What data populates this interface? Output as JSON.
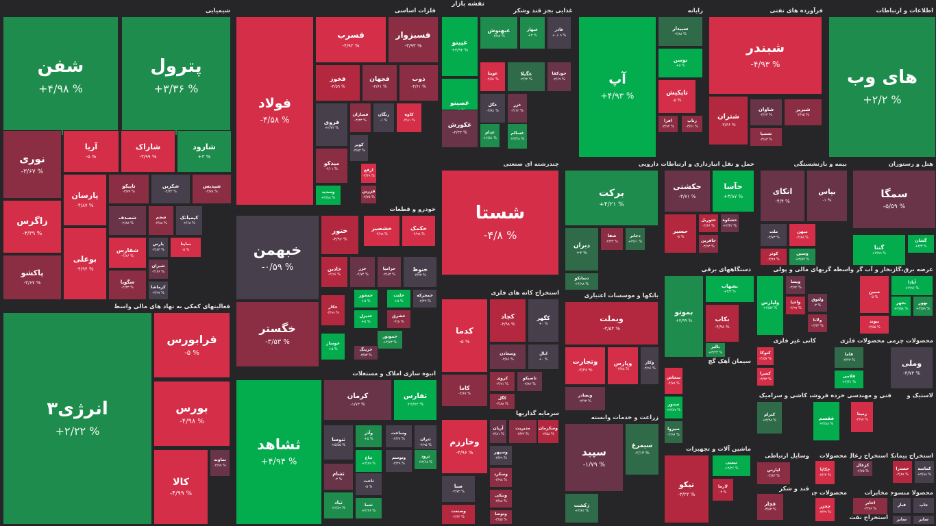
{
  "title": "نقشه بازار",
  "colors": {
    "g3": "#03ad4e",
    "g2": "#1d8c4c",
    "g1": "#2f6b48",
    "n": "#47404c",
    "r1": "#6a3448",
    "r2": "#8b2e43",
    "r3": "#b4283f",
    "r4": "#d42e48",
    "bg": "#262628"
  },
  "sectors": [
    {
      "name": "شیمیایی",
      "tiles": [
        {
          "s": "شفن",
          "c": "+۴/۹۸ %",
          "k": "g2"
        },
        {
          "s": "پترول",
          "c": "+۳/۳۶ %",
          "k": "g2"
        },
        {
          "s": "نوری",
          "c": "-۳/۶۷ %",
          "k": "r2"
        },
        {
          "s": "آریا",
          "c": "-۵ %",
          "k": "r4"
        },
        {
          "s": "شاراک",
          "c": "-۳/۹۹ %",
          "k": "r4"
        },
        {
          "s": "شارود",
          "c": "+۳ %",
          "k": "g2"
        },
        {
          "s": "زاگرس",
          "c": "-۴/۳۹ %",
          "k": "r4"
        },
        {
          "s": "پارسان",
          "c": "-۴/۸۷ %",
          "k": "r4"
        },
        {
          "s": "تاپیکو",
          "c": "-۳/۷۷ %",
          "k": "r2"
        },
        {
          "s": "شکربن",
          "c": "-۳/۴۴ %",
          "k": "n"
        },
        {
          "s": "شپدیس",
          "c": "-۳/۷۸ %",
          "k": "r2"
        },
        {
          "s": "پاکشو",
          "c": "-۳/۶۷ %",
          "k": "r2"
        },
        {
          "s": "شصدف",
          "c": "-۲/۸۸ %",
          "k": "r1"
        },
        {
          "s": "شجم",
          "c": "-۴/۸۸ %",
          "k": "r2"
        },
        {
          "s": "کیمیاتک",
          "c": "-۲/۶۸ %",
          "k": "n"
        },
        {
          "s": "شفارس",
          "c": "-۴/۸۶ %",
          "k": "r4"
        },
        {
          "s": "شگویا",
          "c": "-۴/۳۳ %",
          "k": "r2"
        },
        {
          "s": "پارس",
          "c": "-۳/۸۳ %",
          "k": "n"
        },
        {
          "s": "ساینا",
          "c": "-۵ %",
          "k": "r4"
        },
        {
          "s": "بوعلی",
          "c": "-۴/۹۴ %",
          "k": "r4"
        },
        {
          "s": "شیران",
          "c": "-۳/۶۶ %",
          "k": "r1"
        },
        {
          "s": "فارس",
          "c": "-۳/۹۵ %",
          "k": "r2"
        },
        {
          "s": "کرماشا",
          "c": "-۳/۲۷ %",
          "k": "n"
        }
      ]
    },
    {
      "name": "فلزات اساسی",
      "tiles": [
        {
          "s": "فولاد",
          "c": "-۴/۵۸ %",
          "k": "r4"
        },
        {
          "s": "فسرب",
          "c": "-۴/۹۲ %",
          "k": "r4"
        },
        {
          "s": "فسبزوار",
          "c": "-۳/۹۳ %",
          "k": "r2"
        },
        {
          "s": "فخوز",
          "c": "-۴/۵۹ %",
          "k": "r3"
        },
        {
          "s": "فجهان",
          "c": "-۳/۶۱ %",
          "k": "r2"
        },
        {
          "s": "ذوب",
          "c": "-۴/۶۱ %",
          "k": "r2"
        },
        {
          "s": "فروی",
          "c": "+۲/۷۲ %",
          "k": "n"
        },
        {
          "s": "فسازان",
          "c": "-۳/۳۳ %",
          "k": "r2"
        },
        {
          "s": "زنگان",
          "c": "-۱ %",
          "k": "n"
        },
        {
          "s": "کاوه",
          "c": "-۴/۸۱ %",
          "k": "r4"
        },
        {
          "s": "کویر",
          "c": "-۳/۵۳ %",
          "k": "n"
        },
        {
          "s": "میدکو",
          "c": "-۴/۰۱ %",
          "k": "r2"
        },
        {
          "s": "ارفع",
          "c": "-۳/۴۹ %",
          "k": "r4"
        },
        {
          "s": "فزرین",
          "c": "-۳/۷۵ %",
          "k": "r2"
        },
        {
          "s": "وسدید",
          "c": "+۳/۸۸ %",
          "k": "g3"
        }
      ]
    },
    {
      "name": "غذایی بجز قند وشکر",
      "tiles": [
        {
          "s": "غپینو",
          "c": "+۳/۹۲ %",
          "k": "g3"
        },
        {
          "s": "غبهنوش",
          "c": "-۳/۸۷ %",
          "k": "g2"
        },
        {
          "s": "غبهار",
          "c": "+۳ %",
          "k": "g2"
        },
        {
          "s": "غاذر",
          "c": "+۰/۰۹ %",
          "k": "n"
        },
        {
          "s": "غصینو",
          "c": "+۵ %",
          "k": "g3"
        },
        {
          "s": "غویتا",
          "c": "-۴/۵۱ %",
          "k": "r4"
        },
        {
          "s": "غگیلا",
          "c": "-۲/۴۲ %",
          "k": "g1"
        },
        {
          "s": "خودکفا",
          "c": "-۲/۶۹ %",
          "k": "r1"
        },
        {
          "s": "غگل",
          "c": "-۳/۸۱ %",
          "k": "n"
        },
        {
          "s": "غزر",
          "c": "-۳/۱۲ %",
          "k": "r1"
        },
        {
          "s": "غکورش",
          "c": "-۳/۳۳ %",
          "k": "r1"
        },
        {
          "s": "غدام",
          "c": "+۲/۵۱ %",
          "k": "g2"
        },
        {
          "s": "غسالم",
          "c": "+۳/۴۸ %",
          "k": "g2"
        }
      ]
    },
    {
      "name": "رایانه",
      "tiles": [
        {
          "s": "آپ",
          "c": "+۴/۹۳ %",
          "k": "g3"
        },
        {
          "s": "سپیدار",
          "c": "-۳/۸۸ %",
          "k": "g1"
        },
        {
          "s": "توسن",
          "c": "+۵ %",
          "k": "g3"
        },
        {
          "s": "تاپکیش",
          "c": "-۵ %",
          "k": "r4"
        },
        {
          "s": "افرا",
          "c": "-۳/۹۲ %",
          "k": "r2"
        },
        {
          "s": "رتاپ",
          "c": "-۳/۷۱ %",
          "k": "r2"
        }
      ]
    },
    {
      "name": "فرآورده های نفتی",
      "tiles": [
        {
          "s": "شبندر",
          "c": "-۴/۹۳ %",
          "k": "r4"
        },
        {
          "s": "شاوان",
          "c": "-۳/۶۳ %",
          "k": "r1"
        },
        {
          "s": "شبریز",
          "c": "-۳/۹۵ %",
          "k": "r2"
        },
        {
          "s": "شتران",
          "c": "-۳/۶۶ %",
          "k": "r3"
        },
        {
          "s": "شسپا",
          "c": "-۳/۸۳ %",
          "k": "r2"
        }
      ]
    },
    {
      "name": "اطلاعات و ارتباطات",
      "tiles": [
        {
          "s": "های وب",
          "c": "+۲/۲ %",
          "k": "g2"
        }
      ]
    },
    {
      "name": "خودرو و قطعات",
      "tiles": [
        {
          "s": "خبهمن",
          "c": "-۰/۵۹ %",
          "k": "n"
        },
        {
          "s": "ختور",
          "c": "-۴/۹۶ %",
          "k": "r3"
        },
        {
          "s": "خشصیر",
          "c": "-۴/۹۸ %",
          "k": "r4"
        },
        {
          "s": "خکمک",
          "c": "-۴/۹۸ %",
          "k": "r4"
        },
        {
          "s": "خگستر",
          "c": "-۳/۵۳ %",
          "k": "r2"
        },
        {
          "s": "خاذین",
          "c": "-۴/۹۶ %",
          "k": "r3"
        },
        {
          "s": "خزر",
          "c": "-۴/۷۴ %",
          "k": "r1"
        },
        {
          "s": "خزامیا",
          "c": "-۳/۸۳ %",
          "k": "r1"
        },
        {
          "s": "خنوظ",
          "c": "-۳/۳۳ %",
          "k": "n"
        },
        {
          "s": "خکار",
          "c": "-۴/۹۹ %",
          "k": "r3"
        },
        {
          "s": "خمحور",
          "c": "+۵ %",
          "k": "g3"
        },
        {
          "s": "خلنت",
          "c": "+۵ %",
          "k": "g3"
        },
        {
          "s": "خمحرکه",
          "c": "-۲/۴۲ %",
          "k": "n"
        },
        {
          "s": "خدیزل",
          "c": "+۵ %",
          "k": "g3"
        },
        {
          "s": "خشرق",
          "c": "-۴/۸ %",
          "k": "r2"
        },
        {
          "s": "خموتور",
          "c": "+۳/۷۳ %",
          "k": "g2"
        },
        {
          "s": "خوساز",
          "c": "+۵ %",
          "k": "g3"
        },
        {
          "s": "خرینگ",
          "c": "-۳/۵۳ %",
          "k": "r1"
        }
      ]
    },
    {
      "name": "فعالیتهای کمکی به نهاد های مالی واسط",
      "tiles": [
        {
          "s": "انرژی۳",
          "c": "+۲/۲۲ %",
          "k": "g2"
        },
        {
          "s": "فرابورس",
          "c": "-۵ %",
          "k": "r4"
        },
        {
          "s": "بورس",
          "c": "-۴/۹۸ %",
          "k": "r4"
        },
        {
          "s": "کالا",
          "c": "-۴/۹۹ %",
          "k": "r4"
        },
        {
          "s": "تماوند",
          "c": "-۲/۹۹ %",
          "k": "r1"
        }
      ]
    },
    {
      "name": "انبوه سازی املاک و مستغلات",
      "tiles": [
        {
          "s": "ثشاهد",
          "c": "+۴/۹۴ %",
          "k": "g3"
        },
        {
          "s": "کرمان",
          "c": "-۱/۷۳ %",
          "k": "r1"
        },
        {
          "s": "ثفارس",
          "c": "+۳/۷۳ %",
          "k": "g3"
        },
        {
          "s": "ثنوسا",
          "c": "+۵/۵۵ %",
          "k": "n"
        },
        {
          "s": "وآذر",
          "c": "+۵ %",
          "k": "g2"
        },
        {
          "s": "وساخت",
          "c": "-۲/۲۷ %",
          "k": "n"
        },
        {
          "s": "ثتران",
          "c": "-۳/۹۵ %",
          "k": "n"
        },
        {
          "s": "ثباغ",
          "c": "+۳/۸۹ %",
          "k": "g3"
        },
        {
          "s": "وتوسم",
          "c": "-۳/۲۹ %",
          "k": "n"
        },
        {
          "s": "ثرود",
          "c": "+۳/۶۸ %",
          "k": "g2"
        },
        {
          "s": "ثشام",
          "c": "-۳ %",
          "k": "r1"
        },
        {
          "s": "ثاخت",
          "c": "-۵ %",
          "k": "n"
        },
        {
          "s": "ثباد",
          "c": "+۲/۸۹ %",
          "k": "g2"
        },
        {
          "s": "ثعما",
          "c": "+۳/۶۶ %",
          "k": "g2"
        }
      ]
    },
    {
      "name": "چندرشته ای صنعتی",
      "tiles": [
        {
          "s": "شستا",
          "c": "-۴/۸ %",
          "k": "r4"
        }
      ]
    },
    {
      "name": "استخراج کانه های فلزی",
      "tiles": [
        {
          "s": "کدما",
          "c": "-۵ %",
          "k": "r4"
        },
        {
          "s": "کچاد",
          "c": "-۴/۹۸ %",
          "k": "r3"
        },
        {
          "s": "کگهر",
          "c": "+۰ %",
          "k": "n"
        },
        {
          "s": "وسعادن",
          "c": "-۳/۸۶ %",
          "k": "r1"
        },
        {
          "s": "ابال",
          "c": "+۰ %",
          "k": "n"
        },
        {
          "s": "کاما",
          "c": "-۳/۶۷ %",
          "k": "r2"
        },
        {
          "s": "کروی",
          "c": "-۴/۷۱ %",
          "k": "r2"
        },
        {
          "s": "تاصیکو",
          "c": "-۳/۸۲ %",
          "k": "r1"
        },
        {
          "s": "کگل",
          "c": "-۴/۸۸ %",
          "k": "r2"
        }
      ]
    },
    {
      "name": "سرمایه گذاریها",
      "tiles": [
        {
          "s": "وخارزم",
          "c": "-۴/۹۶ %",
          "k": "r4"
        },
        {
          "s": "آریان",
          "c": "-۳/۸۱ %",
          "k": "r1"
        },
        {
          "s": "مدیریت",
          "c": "-۳/۳۲ %",
          "k": "r2"
        },
        {
          "s": "وسکرمان",
          "c": "-۳/۵۸ %",
          "k": "r3"
        },
        {
          "s": "وسپهر",
          "c": "-۳/۷۹ %",
          "k": "n"
        },
        {
          "s": "وسکرد",
          "c": "-۳/۹۸ %",
          "k": "r2"
        },
        {
          "s": "صبا",
          "c": "-۳/۷۲ %",
          "k": "n"
        },
        {
          "s": "ونیکی",
          "c": "-۳/۸۸ %",
          "k": "r2"
        },
        {
          "s": "وتوصا",
          "c": "-۳/۵۵ %",
          "k": "r2"
        },
        {
          "s": "وصنعت",
          "c": "-۳/۴۴ %",
          "k": "r3"
        }
      ]
    },
    {
      "name": "دارویی",
      "tiles": [
        {
          "s": "برکت",
          "c": "+۴/۲۱ %",
          "k": "g2"
        },
        {
          "s": "دیران",
          "c": "+۳ %",
          "k": "g1"
        },
        {
          "s": "شفا",
          "c": "-۴/۳۴ %",
          "k": "r2"
        },
        {
          "s": "دجابر",
          "c": "+۳/۶۱ %",
          "k": "g1"
        },
        {
          "s": "دسانکو",
          "c": "+۴/۹۸ %",
          "k": "g1"
        }
      ]
    },
    {
      "name": "بانکها و موسسات اعتباری",
      "tiles": [
        {
          "s": "وبملت",
          "c": "-۳/۵۴ %",
          "k": "r3"
        },
        {
          "s": "وتجارت",
          "c": "-۳/۳۶ %",
          "k": "r4"
        },
        {
          "s": "وپارس",
          "c": "-۳/۸۸ %",
          "k": "r4"
        },
        {
          "s": "وکار",
          "c": "-۳/۹۶ %",
          "k": "n"
        },
        {
          "s": "وبصادر",
          "c": "-۳/۴۳ %",
          "k": "r1"
        }
      ]
    },
    {
      "name": "زراعت و خدمات وابسته",
      "tiles": [
        {
          "s": "سپید",
          "c": "-۱/۷۹ %",
          "k": "r1"
        },
        {
          "s": "سیمرغ",
          "c": "-۲/۱۳ %",
          "k": "g1"
        },
        {
          "s": "زکشت",
          "c": "+۳/۸۲ %",
          "k": "g1"
        }
      ]
    },
    {
      "name": "حمل و نقل انبارداری و ارتباطات",
      "tiles": [
        {
          "s": "حکشتی",
          "c": "-۳/۷۱ %",
          "k": "r1"
        },
        {
          "s": "حآسا",
          "c": "+۳/۸۷ %",
          "k": "g3"
        },
        {
          "s": "حسیر",
          "c": "-۵ %",
          "k": "r3"
        },
        {
          "s": "حتوریل",
          "c": "-۳/۶۶ %",
          "k": "r3"
        },
        {
          "s": "حشکوه",
          "c": "+۳/۴۲ %",
          "k": "r1"
        },
        {
          "s": "حافرین",
          "c": "-۳/۹۳ %",
          "k": "r2"
        }
      ]
    },
    {
      "name": "بیمه و بازنشستگی",
      "tiles": [
        {
          "s": "اتکای",
          "c": "-۴/۴ %",
          "k": "r1"
        },
        {
          "s": "بپاس",
          "c": "-۱ %",
          "k": "r1"
        },
        {
          "s": "ملت",
          "c": "-۳/۷۳ %",
          "k": "n"
        },
        {
          "s": "میهن",
          "c": "-۴/۸۸ %",
          "k": "r4"
        },
        {
          "s": "کوثر",
          "c": "-۳/۴۸ %",
          "k": "r3"
        },
        {
          "s": "وسین",
          "c": "+۳/۵۴ %",
          "k": "g2"
        }
      ]
    },
    {
      "name": "هتل و رستوران",
      "tiles": [
        {
          "s": "سمگا",
          "c": "-۵/۵۹ %",
          "k": "r1"
        },
        {
          "s": "گشان",
          "c": "+۳/۳ %",
          "k": "g3"
        },
        {
          "s": "گنتا",
          "c": "+۳/۹۹ %",
          "k": "g3"
        }
      ]
    },
    {
      "name": "دستگاههای برقی",
      "tiles": [
        {
          "s": "بموتو",
          "c": "+۳/۹۹ %",
          "k": "g2"
        },
        {
          "s": "بشهاب",
          "c": "+۳/۳ %",
          "k": "g3"
        },
        {
          "s": "بکاب",
          "c": "-۴/۹۸ %",
          "k": "r3"
        },
        {
          "s": "بالبر",
          "c": "+۳/۴۳ %",
          "k": "g2"
        }
      ]
    },
    {
      "name": "واسطه گریهای مالی و پولی",
      "tiles": [
        {
          "s": "ولپارس",
          "c": "+۳/۵۳ %",
          "k": "g3"
        },
        {
          "s": "ویسا",
          "c": "-۳/۹۲ %",
          "k": "r1"
        },
        {
          "s": "واحیا",
          "c": "-۳/۹۷ %",
          "k": "r3"
        },
        {
          "s": "ولتوق",
          "c": "-۳ %",
          "k": "r1"
        },
        {
          "s": "ولانا",
          "c": "-۳/۳۳ %",
          "k": "r2"
        }
      ]
    },
    {
      "name": "عرضه برق،گازبخار و آب گرم",
      "tiles": [
        {
          "s": "مبین",
          "c": "-۵ %",
          "k": "r4"
        },
        {
          "s": "آبادا",
          "c": "+۳/۹۶ %",
          "k": "g3"
        },
        {
          "s": "بهور",
          "c": "+۳/۵۹ %",
          "k": "g2"
        },
        {
          "s": "بجهر",
          "c": "+۳/۵۸ %",
          "k": "g3"
        },
        {
          "s": "بیوند",
          "c": "-۳/۵۵ %",
          "k": "r4"
        }
      ]
    },
    {
      "name": "سیمان آهک گچ",
      "tiles": [
        {
          "s": "سخاش",
          "c": "-۴/۷۸ %",
          "k": "r4"
        },
        {
          "s": "سدور",
          "c": "+۳/۸۷ %",
          "k": "g3"
        },
        {
          "s": "سیزوا",
          "c": "-۳/۹۶ %",
          "k": "g1"
        }
      ]
    },
    {
      "name": "کانی غیر فلزی",
      "tiles": [
        {
          "s": "کتوکا",
          "c": "-۴/۵۷ %",
          "k": "r4"
        },
        {
          "s": "کسرا",
          "c": "-۳/۳۳ %",
          "k": "r4"
        }
      ]
    },
    {
      "name": "محصولات فلزی",
      "tiles": [
        {
          "s": "فاما",
          "c": "-۳/۴۳ %",
          "k": "g1"
        },
        {
          "s": "فلامی",
          "c": "+۳/۶۱ %",
          "k": "g3"
        }
      ]
    },
    {
      "name": "محصولات چرمی",
      "tiles": [
        {
          "s": "وملی",
          "c": "-۳/۷۴ %",
          "k": "n"
        }
      ]
    },
    {
      "name": "ماشین آلات و تجهیزات",
      "tiles": [
        {
          "s": "تیکو",
          "c": "-۳/۲۲ %",
          "k": "r3"
        },
        {
          "s": "تپمپی",
          "c": "+۳/۲۶ %",
          "k": "g3"
        },
        {
          "s": "لازما",
          "c": "-۳ %",
          "k": "r3"
        }
      ]
    },
    {
      "name": "کاشی و سرامیک",
      "tiles": [
        {
          "s": "کترام",
          "c": "+۳/۳۸ %",
          "k": "g1"
        },
        {
          "s": "کمرجان",
          "c": "-۴/۸ %",
          "k": "r4"
        }
      ]
    },
    {
      "name": "خرده فروشی",
      "tiles": [
        {
          "s": "فقسم",
          "c": "+۳/۸۸ %",
          "k": "g3"
        }
      ]
    },
    {
      "name": "فنی و مهندسی",
      "tiles": [
        {
          "s": "رمپنا",
          "c": "-۳/۹۷ %",
          "k": "r4"
        }
      ]
    },
    {
      "name": "لاستیک و",
      "tiles": []
    },
    {
      "name": "وسایل ارتباطی",
      "tiles": [
        {
          "s": "لپارس",
          "c": "-۳/۸۳ %",
          "k": "r2"
        }
      ]
    },
    {
      "name": "محصولات",
      "tiles": [
        {
          "s": "چکاپا",
          "c": "-۳/۶۴ %",
          "k": "r4"
        }
      ]
    },
    {
      "name": "استخراج زغال",
      "tiles": [
        {
          "s": "کزغال",
          "c": "-۲/۷۵ %",
          "k": "r1"
        }
      ]
    },
    {
      "name": "استخراج پیمانکاری",
      "tiles": [
        {
          "s": "خصدرا",
          "c": "-۳/۸۹ %",
          "k": "r3"
        },
        {
          "s": "کماسه",
          "c": "+۳/۸۸ %",
          "k": "n"
        }
      ]
    },
    {
      "name": "مخابرات",
      "tiles": [
        {
          "s": "اخابر",
          "c": "-۳/۷۶ %",
          "k": "r2"
        }
      ]
    },
    {
      "name": "قند و شکر",
      "tiles": [
        {
          "s": "قچار",
          "c": "-۳/۵۳ %",
          "k": "r2"
        }
      ]
    },
    {
      "name": "محصولات چوبی",
      "tiles": [
        {
          "s": "چخزر",
          "c": "-۳/۳۹ %",
          "k": "r4"
        }
      ]
    },
    {
      "name": "استخراج نفت",
      "tiles": []
    },
    {
      "name": "محصولا منسوجات",
      "tiles": [
        {
          "s": "فبار",
          "c": "",
          "k": "n"
        },
        {
          "s": "جاپ",
          "c": "",
          "k": "n"
        },
        {
          "s": "سایر",
          "c": "",
          "k": "n"
        },
        {
          "s": "سایر",
          "c": "",
          "k": "n"
        }
      ]
    }
  ]
}
